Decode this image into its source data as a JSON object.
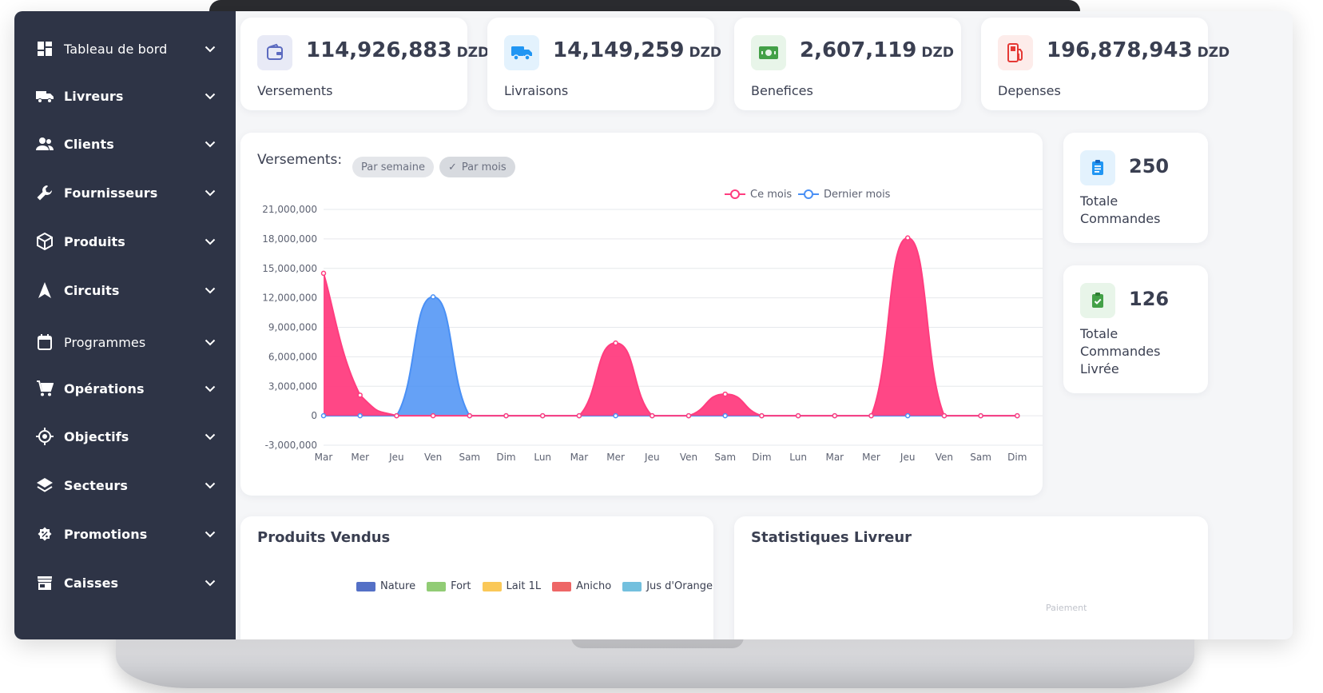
{
  "sidebar": {
    "items": [
      {
        "label": "Tableau de bord",
        "icon": "dashboard-icon",
        "weight": "light"
      },
      {
        "label": "Livreurs",
        "icon": "truck-icon",
        "weight": "bold"
      },
      {
        "label": "Clients",
        "icon": "users-icon",
        "weight": "bold"
      },
      {
        "label": "Fournisseurs",
        "icon": "wrench-icon",
        "weight": "bold"
      },
      {
        "label": "Produits",
        "icon": "box-icon",
        "weight": "bold"
      },
      {
        "label": "Circuits",
        "icon": "navigation-arrow-icon",
        "weight": "bold"
      },
      {
        "label": "Programmes",
        "icon": "calendar-icon",
        "weight": "light"
      },
      {
        "label": "Opérations",
        "icon": "cart-icon",
        "weight": "bold"
      },
      {
        "label": "Objectifs",
        "icon": "target-icon",
        "weight": "bold"
      },
      {
        "label": "Secteurs",
        "icon": "layers-icon",
        "weight": "bold"
      },
      {
        "label": "Promotions",
        "icon": "promo-badge-icon",
        "weight": "bold"
      },
      {
        "label": "Caisses",
        "icon": "store-icon",
        "weight": "bold"
      }
    ]
  },
  "stats": [
    {
      "value": "114,926,883",
      "unit": "DZD",
      "label": "Versements",
      "icon": "wallet-icon",
      "color": "#5c6bc0",
      "bg": "#e8eaf6"
    },
    {
      "value": "14,149,259",
      "unit": "DZD",
      "label": "Livraisons",
      "icon": "delivery-truck-icon",
      "color": "#2196f3",
      "bg": "#e3f2fd"
    },
    {
      "value": "2,607,119",
      "unit": "DZD",
      "label": "Benefices",
      "icon": "money-icon",
      "color": "#43a047",
      "bg": "#e8f5e9"
    },
    {
      "value": "196,878,943",
      "unit": "DZD",
      "label": "Depenses",
      "icon": "fuel-icon",
      "color": "#e53935",
      "bg": "#fdecea"
    }
  ],
  "versements_chart": {
    "title": "Versements:",
    "chips": [
      {
        "label": "Par semaine",
        "active": false
      },
      {
        "label": "Par mois",
        "active": true,
        "check": "✓"
      }
    ]
  },
  "chart_data": {
    "type": "area",
    "x": [
      "Mar",
      "Mer",
      "Jeu",
      "Ven",
      "Sam",
      "Dim",
      "Lun",
      "Mar",
      "Mer",
      "Jeu",
      "Ven",
      "Sam",
      "Dim",
      "Lun",
      "Mar",
      "Mer",
      "Jeu",
      "Ven",
      "Sam",
      "Dim"
    ],
    "series": [
      {
        "name": "Ce mois",
        "color": "#ff3d7f",
        "values": [
          14500000,
          2100000,
          0,
          0,
          0,
          0,
          0,
          0,
          7400000,
          0,
          0,
          2200000,
          0,
          0,
          0,
          0,
          18100000,
          0,
          0,
          0
        ]
      },
      {
        "name": "Dernier mois",
        "color": "#4a90f5",
        "values": [
          0,
          0,
          0,
          12100000,
          0,
          0,
          0,
          0,
          0,
          0,
          0,
          0,
          0,
          0,
          0,
          0,
          0,
          0,
          0,
          0
        ]
      }
    ],
    "y_ticks": [
      "21,000,000",
      "18,000,000",
      "15,000,000",
      "12,000,000",
      "9,000,000",
      "6,000,000",
      "3,000,000",
      "0",
      "-3,000,000"
    ],
    "ylim": [
      -3000000,
      21000000
    ],
    "grid": true,
    "legend_position": "top-right"
  },
  "side_cards": [
    {
      "value": "250",
      "label": "Totale Commandes",
      "icon": "clipboard-list-icon",
      "color": "#2196f3",
      "bg": "#e3f2fd"
    },
    {
      "value": "126",
      "label": "Totale Commandes Livrée",
      "icon": "clipboard-check-icon",
      "color": "#43a047",
      "bg": "#e8f5e9"
    }
  ],
  "produits_vendus": {
    "title": "Produits Vendus",
    "legend": [
      {
        "name": "Nature",
        "color": "#5470c6"
      },
      {
        "name": "Fort",
        "color": "#91cc75"
      },
      {
        "name": "Lait 1L",
        "color": "#fac858"
      },
      {
        "name": "Anicho",
        "color": "#ee6666"
      },
      {
        "name": "Jus d'Orange",
        "color": "#73c0de"
      }
    ]
  },
  "statistiques_livreur": {
    "title": "Statistiques Livreur",
    "faint": "Paiement"
  }
}
